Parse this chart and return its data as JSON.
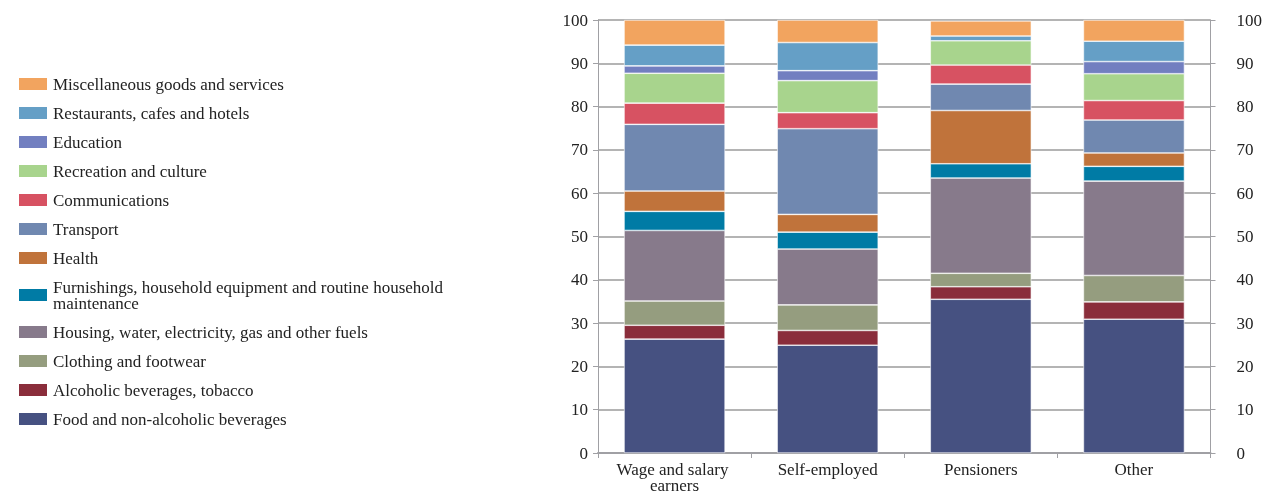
{
  "chart_data": {
    "type": "bar",
    "stacked": true,
    "categories": [
      "Wage and salary earners",
      "Self-employed",
      "Pensioners",
      "Other"
    ],
    "series": [
      {
        "name": "Food and non-alcoholic beverages",
        "color": "#465181",
        "values": [
          26.3,
          24.9,
          35.5,
          30.9
        ]
      },
      {
        "name": "Alcoholic beverages, tobacco",
        "color": "#8a2d3b",
        "values": [
          3.2,
          3.4,
          2.9,
          4.0
        ]
      },
      {
        "name": "Clothing and footwear",
        "color": "#959d7f",
        "values": [
          5.6,
          5.9,
          3.1,
          6.1
        ]
      },
      {
        "name": "Housing, water, electricity, gas and other fuels",
        "color": "#877a8b",
        "values": [
          16.3,
          12.9,
          22.0,
          21.8
        ]
      },
      {
        "name": "Furnishings, household equipment and routine household maintenance",
        "color": "#007ba5",
        "values": [
          4.4,
          3.9,
          3.3,
          3.4
        ]
      },
      {
        "name": "Health",
        "color": "#c0733b",
        "values": [
          4.7,
          4.1,
          12.3,
          3.1
        ]
      },
      {
        "name": "Transport",
        "color": "#7088b0",
        "values": [
          15.4,
          19.8,
          6.1,
          7.6
        ]
      },
      {
        "name": "Communications",
        "color": "#d75262",
        "values": [
          4.9,
          3.7,
          4.4,
          4.5
        ]
      },
      {
        "name": "Recreation and culture",
        "color": "#a8d48d",
        "values": [
          6.9,
          7.4,
          5.6,
          6.2
        ]
      },
      {
        "name": "Education",
        "color": "#727fc0",
        "values": [
          1.7,
          2.3,
          null,
          2.8
        ]
      },
      {
        "name": "Restaurants, cafes and hotels",
        "color": "#659fc6",
        "values": [
          4.8,
          6.5,
          1.1,
          4.7
        ]
      },
      {
        "name": "Miscellaneous goods and services",
        "color": "#f2a45f",
        "values": [
          5.8,
          5.2,
          3.5,
          4.9
        ]
      }
    ],
    "ylim": [
      0,
      100
    ],
    "yticks": [
      0,
      10,
      20,
      30,
      40,
      50,
      60,
      70,
      80,
      90,
      100
    ],
    "y2lim": [
      0,
      100
    ],
    "y2ticks": [
      0,
      10,
      20,
      30,
      40,
      50,
      60,
      70,
      80,
      90,
      100
    ],
    "grid": "y",
    "legend": "left"
  }
}
